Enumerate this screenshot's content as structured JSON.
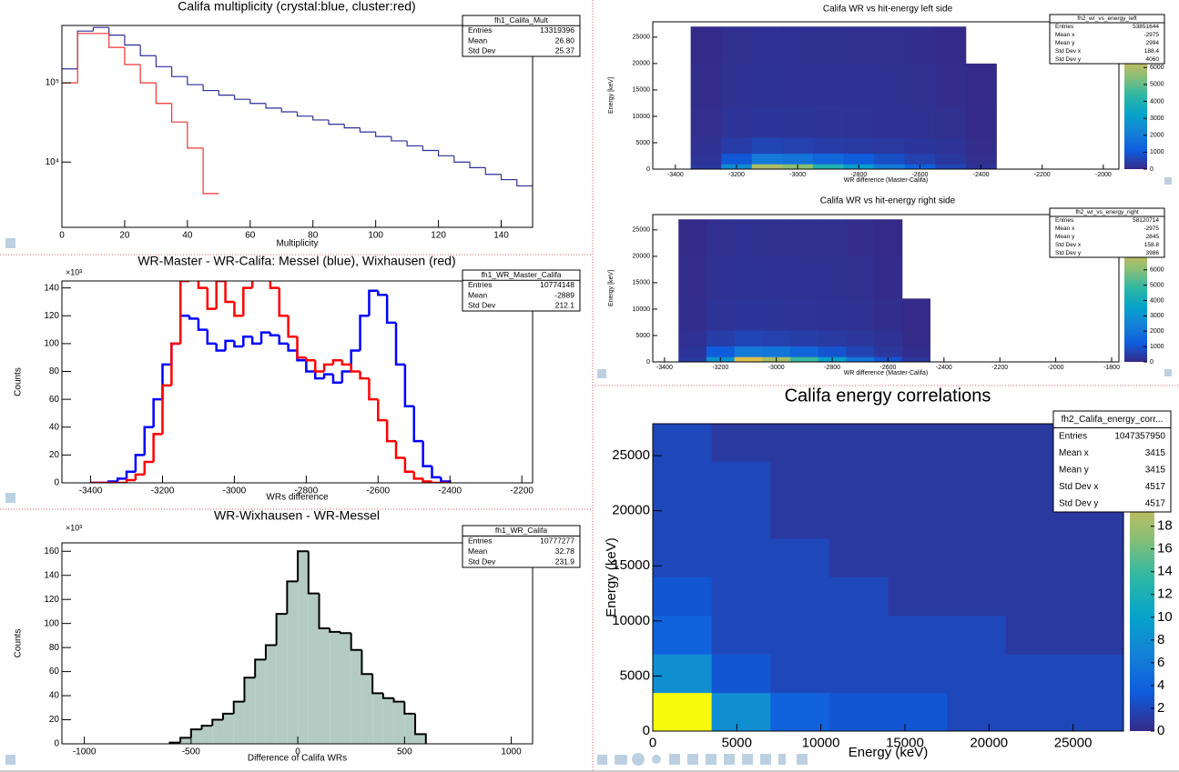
{
  "chart_data": [
    {
      "type": "histogram",
      "title": "Califa multiplicity (crystal:blue, cluster:red)",
      "x_label": "Multiplicity",
      "log_y": true,
      "xlim": [
        0,
        150
      ],
      "ylim": [
        1500,
        530000
      ],
      "xticks": [
        0,
        20,
        40,
        60,
        80,
        100,
        120,
        140
      ],
      "yticks": [
        {
          "value": 10000,
          "label": "10⁴"
        },
        {
          "value": 100000,
          "label": "10⁵"
        }
      ],
      "bins": [
        0,
        5,
        10,
        15,
        20,
        25,
        30,
        35,
        40,
        45,
        50,
        55,
        60,
        65,
        70,
        75,
        80,
        85,
        90,
        95,
        100,
        105,
        110,
        115,
        120,
        125,
        130,
        135,
        140,
        145,
        150
      ],
      "series": [
        {
          "color": "#2b2f9c",
          "values": [
            150000,
            450000,
            500000,
            400000,
            300000,
            220000,
            160000,
            120000,
            95000,
            80000,
            70000,
            62000,
            55000,
            48000,
            43000,
            38000,
            34000,
            30000,
            27000,
            24000,
            21000,
            18500,
            16000,
            14000,
            12000,
            10000,
            8500,
            7000,
            6000,
            5000
          ]
        },
        {
          "color": "#ee3333",
          "values": [
            100000,
            420000,
            420000,
            280000,
            170000,
            100000,
            55000,
            32000,
            15000,
            4000,
            null,
            null,
            null,
            null,
            null,
            null,
            null,
            null,
            null,
            null,
            null,
            null,
            null,
            null,
            null,
            null,
            null,
            null,
            null,
            null
          ]
        }
      ],
      "stats": {
        "name": "fh1_Califa_Mult",
        "rows": [
          [
            "Entries",
            "13319396"
          ],
          [
            "Mean",
            "26.80"
          ],
          [
            "Std Dev",
            "25.37"
          ]
        ]
      }
    },
    {
      "type": "histogram",
      "title": "WR-Master - WR-Califa: Messel (blue), Wixhausen (red)",
      "x_label": "WRs difference",
      "y_label": "Counts",
      "y_multiplier": "×10³",
      "xlim": [
        -3480,
        -2170
      ],
      "ylim": [
        0,
        145
      ],
      "xticks": [
        -3400,
        -3200,
        -3000,
        -2800,
        -2600,
        -2400,
        -2200
      ],
      "yticks": [
        0,
        20,
        40,
        60,
        80,
        100,
        120,
        140
      ],
      "bins": [
        -3400,
        -3375,
        -3350,
        -3325,
        -3300,
        -3275,
        -3250,
        -3225,
        -3200,
        -3175,
        -3150,
        -3125,
        -3100,
        -3075,
        -3050,
        -3025,
        -3000,
        -2975,
        -2950,
        -2925,
        -2900,
        -2875,
        -2850,
        -2825,
        -2800,
        -2775,
        -2750,
        -2725,
        -2700,
        -2675,
        -2650,
        -2625,
        -2600,
        -2575,
        -2550,
        -2525,
        -2500,
        -2475,
        -2450,
        -2425,
        -2400
      ],
      "series": [
        {
          "color": "#0000ff",
          "values": [
            0,
            0,
            1,
            3,
            8,
            20,
            40,
            60,
            85,
            100,
            120,
            118,
            110,
            100,
            95,
            102,
            98,
            105,
            100,
            108,
            106,
            100,
            95,
            88,
            80,
            75,
            78,
            72,
            80,
            95,
            120,
            138,
            135,
            115,
            85,
            55,
            30,
            12,
            4,
            1
          ]
        },
        {
          "color": "#ff0000",
          "values": [
            0,
            0,
            0,
            0,
            2,
            6,
            15,
            35,
            70,
            100,
            145,
            150,
            140,
            125,
            145,
            130,
            120,
            140,
            150,
            150,
            140,
            120,
            105,
            90,
            88,
            80,
            85,
            88,
            85,
            80,
            75,
            60,
            45,
            30,
            18,
            8,
            3,
            1,
            0,
            0
          ]
        }
      ],
      "stats": {
        "name": "fh1_WR_Master_Califa",
        "rows": [
          [
            "Entries",
            "10774148"
          ],
          [
            "Mean",
            "-2889"
          ],
          [
            "Std Dev",
            "212.1"
          ]
        ]
      }
    },
    {
      "type": "histogram",
      "title": "WR-Wixhausen - WR-Messel",
      "x_label": "Difference of Califa WRs",
      "y_label": "Counts",
      "y_multiplier": "×10³",
      "fill": "#b4cbc4",
      "xlim": [
        -1105,
        1100
      ],
      "ylim": [
        0,
        167
      ],
      "xticks": [
        -1000,
        -500,
        0,
        500,
        1000
      ],
      "yticks": [
        0,
        20,
        40,
        60,
        80,
        100,
        120,
        140,
        160
      ],
      "bins": [
        -600,
        -550,
        -500,
        -450,
        -400,
        -350,
        -300,
        -250,
        -200,
        -150,
        -100,
        -50,
        0,
        50,
        100,
        150,
        200,
        250,
        300,
        350,
        400,
        450,
        500,
        550,
        600
      ],
      "series": [
        {
          "color": "#000000",
          "values": [
            1,
            5,
            12,
            15,
            20,
            25,
            35,
            55,
            70,
            82,
            108,
            135,
            160,
            125,
            96,
            93,
            92,
            78,
            58,
            42,
            38,
            35,
            25,
            8
          ]
        }
      ],
      "stats": {
        "name": "fh1_WR_Califa",
        "rows": [
          [
            "Entries",
            "10777277"
          ],
          [
            "Mean",
            "32.78"
          ],
          [
            "Std Dev",
            "231.9"
          ]
        ]
      }
    },
    {
      "type": "heatmap",
      "title": "Califa WR vs hit-energy left side",
      "x_label": "WR difference (Master-Califa)",
      "y_label": "Energy [keV]",
      "xlim": [
        -3474,
        -1949
      ],
      "ylim": [
        0,
        27900
      ],
      "zlim": [
        0,
        8700
      ],
      "xticks": [
        -3400,
        -3200,
        -3000,
        -2800,
        -2600,
        -2400,
        -2200,
        -2000
      ],
      "yticks": [
        0,
        5000,
        10000,
        15000,
        20000,
        25000
      ],
      "zticks": [
        0,
        1000,
        2000,
        3000,
        4000,
        5000,
        6000
      ],
      "x_edges": [
        -3350,
        -3250,
        -3150,
        -3050,
        -2950,
        -2850,
        -2750,
        -2650,
        -2550,
        -2450,
        -2350
      ],
      "y_edges": [
        0,
        1000,
        3000,
        6000,
        12000,
        20000,
        27000
      ],
      "z": [
        [
          300,
          2500,
          6000,
          5500,
          4000,
          3000,
          2000,
          1200,
          600,
          200
        ],
        [
          200,
          1000,
          2000,
          1800,
          1400,
          1100,
          800,
          500,
          300,
          100
        ],
        [
          150,
          400,
          600,
          500,
          400,
          350,
          300,
          250,
          200,
          60
        ],
        [
          100,
          200,
          250,
          230,
          210,
          190,
          170,
          150,
          110,
          20
        ],
        [
          60,
          150,
          180,
          170,
          160,
          150,
          140,
          120,
          60,
          5
        ],
        [
          30,
          120,
          150,
          140,
          130,
          120,
          110,
          80,
          20,
          0
        ]
      ],
      "stats": {
        "name": "fh2_wr_vs_energy_left",
        "rows": [
          [
            "Entries",
            "53851644"
          ],
          [
            "Mean x",
            "-2975"
          ],
          [
            "Mean y",
            "2994"
          ],
          [
            "Std Dev x",
            "188.4"
          ],
          [
            "Std Dev y",
            "4060"
          ]
        ]
      }
    },
    {
      "type": "heatmap",
      "title": "Califa WR vs hit-energy right side",
      "x_label": "WR difference (Master-Califa)",
      "y_label": "Energy [keV]",
      "xlim": [
        -3442,
        -1774
      ],
      "ylim": [
        0,
        27900
      ],
      "zlim": [
        0,
        9600
      ],
      "xticks": [
        -3400,
        -3200,
        -3000,
        -2800,
        -2600,
        -2400,
        -2200,
        -2000,
        -1800
      ],
      "yticks": [
        0,
        5000,
        10000,
        15000,
        20000,
        25000
      ],
      "zticks": [
        0,
        1000,
        2000,
        3000,
        4000,
        5000,
        6000,
        7000
      ],
      "x_edges": [
        -3350,
        -3250,
        -3150,
        -3050,
        -2950,
        -2850,
        -2750,
        -2650,
        -2550,
        -2450
      ],
      "y_edges": [
        0,
        1000,
        3000,
        6000,
        12000,
        20000,
        27000
      ],
      "z": [
        [
          400,
          3000,
          7500,
          6500,
          5000,
          3500,
          2000,
          1000,
          300
        ],
        [
          250,
          1200,
          2200,
          2000,
          1500,
          1000,
          600,
          300,
          80
        ],
        [
          150,
          450,
          650,
          550,
          450,
          380,
          300,
          200,
          30
        ],
        [
          100,
          220,
          260,
          240,
          220,
          200,
          170,
          100,
          5
        ],
        [
          60,
          160,
          190,
          180,
          160,
          150,
          120,
          40,
          0
        ],
        [
          30,
          120,
          150,
          140,
          130,
          120,
          60,
          5,
          0
        ]
      ],
      "stats": {
        "name": "fh2_wr_vs_energy_right",
        "rows": [
          [
            "Entries",
            "58120714"
          ],
          [
            "Mean x",
            "-2975"
          ],
          [
            "Mean y",
            "2845"
          ],
          [
            "Std Dev x",
            "158.8"
          ],
          [
            "Std Dev y",
            "3986"
          ]
        ]
      }
    },
    {
      "type": "heatmap",
      "title": "Califa energy correlations",
      "x_label": "Energy (keV)",
      "y_label": "Energy (keV)",
      "xlim": [
        0,
        28000
      ],
      "ylim": [
        0,
        27900
      ],
      "zlim": [
        0,
        27
      ],
      "xticks": [
        0,
        5000,
        10000,
        15000,
        20000,
        25000
      ],
      "yticks": [
        0,
        5000,
        10000,
        15000,
        20000,
        25000
      ],
      "zticks": [
        0,
        2,
        4,
        6,
        8,
        10,
        12,
        14,
        16,
        18
      ],
      "x_edges": [
        0,
        3500,
        7000,
        10500,
        14000,
        17500,
        21000,
        24500,
        28000
      ],
      "y_edges": [
        0,
        3500,
        7000,
        10500,
        14000,
        17500,
        21000,
        24500,
        28000
      ],
      "z": [
        [
          27,
          8,
          4,
          3,
          3,
          2,
          2,
          2
        ],
        [
          8,
          3,
          2,
          2,
          2,
          2,
          2,
          2
        ],
        [
          4,
          2,
          2,
          2,
          2,
          2,
          1,
          1
        ],
        [
          3,
          2,
          2,
          2,
          1,
          1,
          1,
          1
        ],
        [
          2,
          2,
          2,
          1,
          1,
          1,
          1,
          1
        ],
        [
          2,
          2,
          1,
          1,
          1,
          1,
          1,
          1
        ],
        [
          2,
          2,
          1,
          1,
          1,
          1,
          1,
          1
        ],
        [
          2,
          1,
          1,
          1,
          1,
          1,
          1,
          1
        ]
      ],
      "stats": {
        "name": "fh2_Califa_energy_corr...",
        "rows": [
          [
            "Entries",
            "1047357950"
          ],
          [
            "Mean x",
            "3415"
          ],
          [
            "Mean y",
            "3415"
          ],
          [
            "Std Dev x",
            "4517"
          ],
          [
            "Std Dev y",
            "4517"
          ]
        ]
      }
    }
  ]
}
